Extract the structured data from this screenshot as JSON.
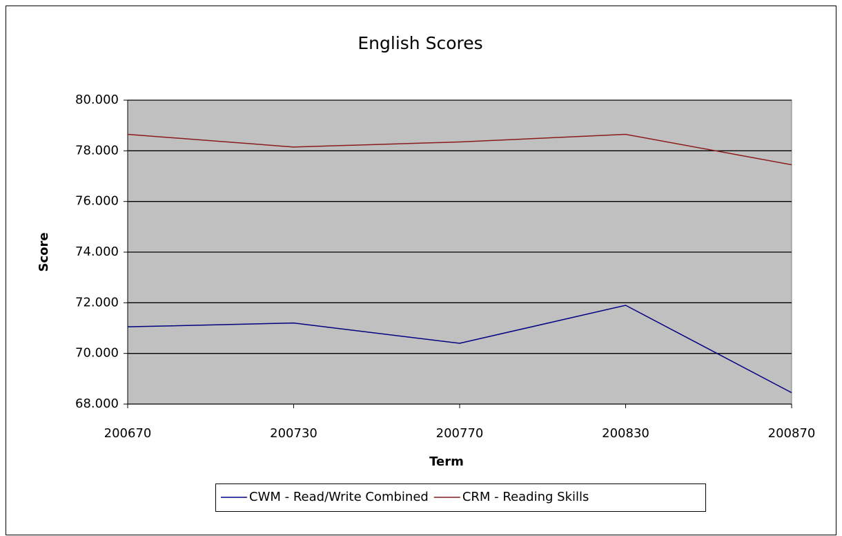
{
  "chart_data": {
    "type": "line",
    "title": "English Scores",
    "x_label": "Term",
    "y_label": "Score",
    "categories": [
      "200670",
      "200730",
      "200770",
      "200830",
      "200870"
    ],
    "series": [
      {
        "name": "CWM - Read/Write Combined",
        "color": "#000080",
        "values": [
          71.05,
          71.2,
          70.4,
          71.9,
          68.45
        ]
      },
      {
        "name": "CRM - Reading Skills",
        "color": "#8b1a1a",
        "values": [
          78.65,
          78.15,
          78.35,
          78.65,
          77.45
        ]
      }
    ],
    "ylim": [
      68,
      80
    ],
    "yticks": [
      {
        "value": 68,
        "label": "68.000"
      },
      {
        "value": 70,
        "label": "70.000"
      },
      {
        "value": 72,
        "label": "72.000"
      },
      {
        "value": 74,
        "label": "74.000"
      },
      {
        "value": 76,
        "label": "76.000"
      },
      {
        "value": 78,
        "label": "78.000"
      },
      {
        "value": 80,
        "label": "80.000"
      }
    ],
    "grid": true,
    "legend": "bottom"
  }
}
